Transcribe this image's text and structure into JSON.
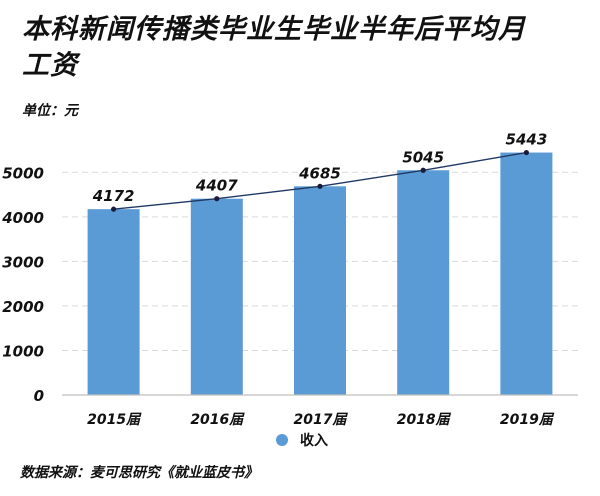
{
  "title": "本科新闻传播类毕业生毕业半年后平均月工资",
  "unit_label": "单位：元",
  "source": "数据来源：麦可思研究《就业蓝皮书》",
  "legend": {
    "label": "收入",
    "color": "#5b9bd5"
  },
  "colors": {
    "bar": "#5b9bd5",
    "line": "#1f3864",
    "grid": "#d9d9d9"
  },
  "chart_data": {
    "type": "bar",
    "title": "本科新闻传播类毕业生毕业半年后平均月工资",
    "categories": [
      "2015届",
      "2016届",
      "2017届",
      "2018届",
      "2019届"
    ],
    "series": [
      {
        "name": "收入",
        "values": [
          4172,
          4407,
          4685,
          5045,
          5443
        ]
      }
    ],
    "trend_line": true,
    "xlabel": "",
    "ylabel": "单位：元",
    "ylim": [
      0,
      5500
    ],
    "yticks": [
      0,
      1000,
      2000,
      3000,
      4000,
      5000
    ],
    "grid": true,
    "legend_position": "bottom"
  }
}
